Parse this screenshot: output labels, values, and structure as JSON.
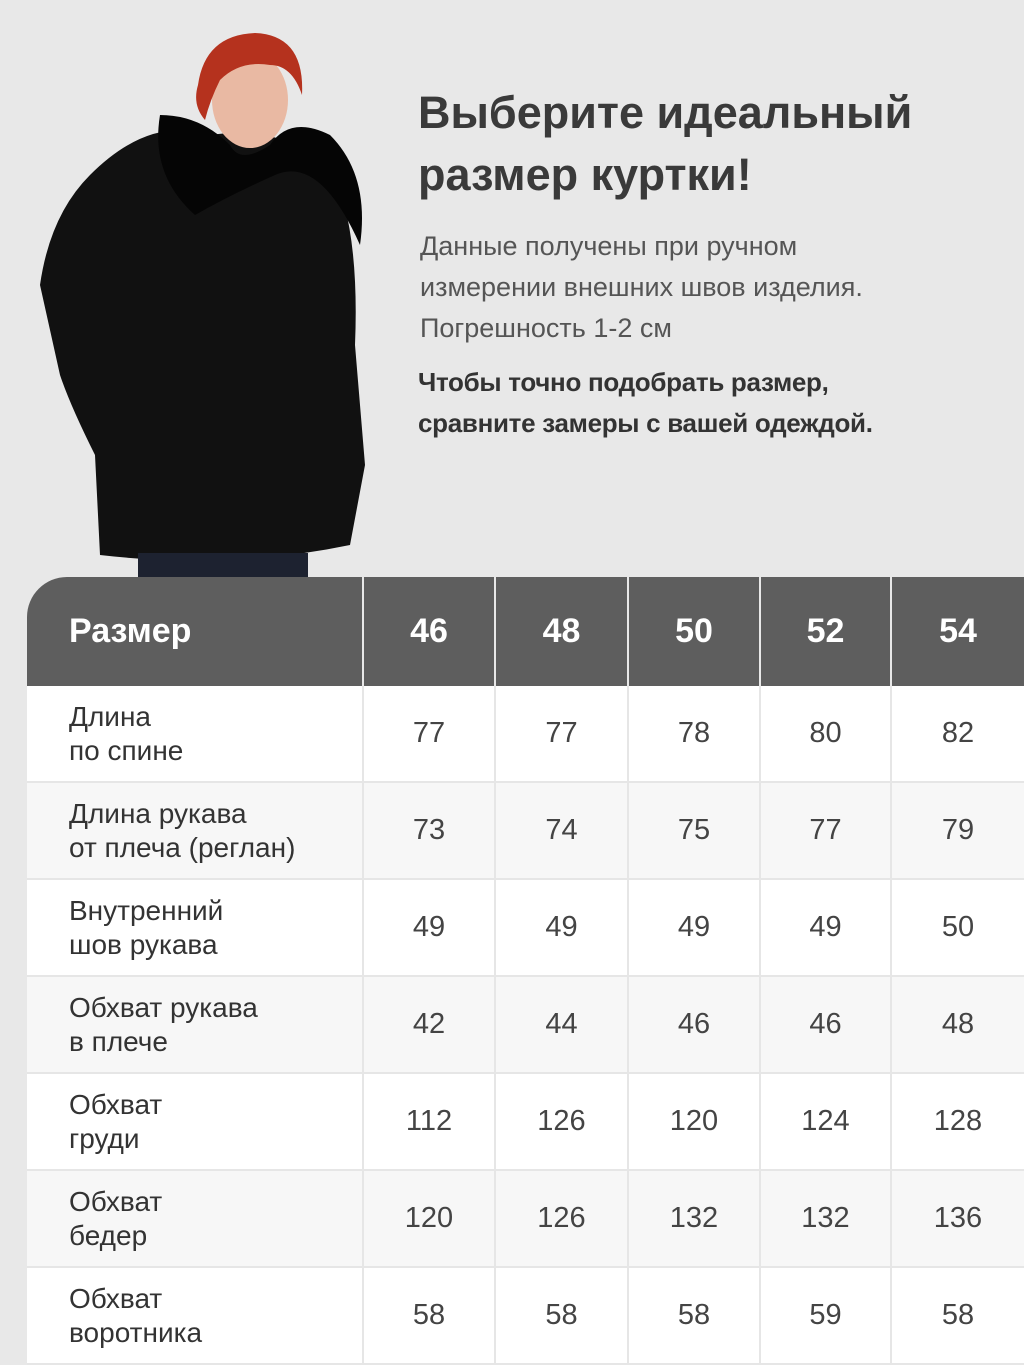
{
  "heading": {
    "title_line1": "Выберите идеальный",
    "title_line2": "размер куртки!",
    "desc_line1": "Данные получены при ручном",
    "desc_line2": "измерении внешних швов изделия.",
    "desc_line3": "Погрешность 1-2 см",
    "note_line1": "Чтобы точно подобрать размер,",
    "note_line2": "сравните замеры с вашей одеждой."
  },
  "colors": {
    "header_bg": "#5e5e5e",
    "page_bg": "#e8e8e8",
    "jacket": "#111111",
    "hair": "#b5321e"
  },
  "table": {
    "header_label": "Размер",
    "sizes": [
      "46",
      "48",
      "50",
      "52",
      "54"
    ],
    "rows": [
      {
        "label": [
          "Длина",
          "по спине"
        ],
        "values": [
          "77",
          "77",
          "78",
          "80",
          "82"
        ]
      },
      {
        "label": [
          "Длина рукава",
          "от плеча (реглан)"
        ],
        "values": [
          "73",
          "74",
          "75",
          "77",
          "79"
        ]
      },
      {
        "label": [
          "Внутренний",
          "шов рукава"
        ],
        "values": [
          "49",
          "49",
          "49",
          "49",
          "50"
        ]
      },
      {
        "label": [
          "Обхват рукава",
          "в плече"
        ],
        "values": [
          "42",
          "44",
          "46",
          "46",
          "48"
        ]
      },
      {
        "label": [
          "Обхват",
          "груди"
        ],
        "values": [
          "112",
          "126",
          "120",
          "124",
          "128"
        ]
      },
      {
        "label": [
          "Обхват",
          "бедер"
        ],
        "values": [
          "120",
          "126",
          "132",
          "132",
          "136"
        ]
      },
      {
        "label": [
          "Обхват",
          "воротника"
        ],
        "values": [
          "58",
          "58",
          "58",
          "59",
          "58"
        ]
      }
    ]
  }
}
